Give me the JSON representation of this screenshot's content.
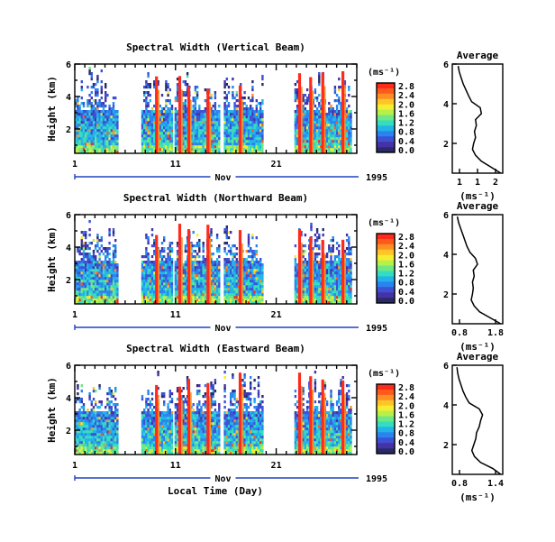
{
  "xaxis_label": "Local Time (Day)",
  "month_label": "Nov",
  "year_label": "1995",
  "colorbar": {
    "unit": "(ms⁻¹)",
    "ticks": [
      "2.8",
      "2.4",
      "2.0",
      "1.6",
      "1.2",
      "0.8",
      "0.4",
      "0.0"
    ],
    "colors": [
      "#ff2a1a",
      "#ff5a1c",
      "#ff8f22",
      "#ffc528",
      "#f5ee30",
      "#b8f04a",
      "#6ee884",
      "#34dcc0",
      "#22b4e8",
      "#2a84f0",
      "#3c52d4",
      "#4432a6",
      "#2a2a6a"
    ]
  },
  "chart_data": [
    {
      "type": "heatmap",
      "title": "Spectral Width (Vertical Beam)",
      "xlabel": "Local Time (Day)",
      "ylabel": "Height (km)",
      "xticks": [
        "1",
        "11",
        "21"
      ],
      "yticks": [
        "2",
        "4",
        "6"
      ],
      "xlim": [
        1,
        29
      ],
      "ylim": [
        0.5,
        6
      ],
      "value_range": [
        0.0,
        2.8
      ],
      "data_intervals_day": [
        [
          1,
          5.3
        ],
        [
          7.6,
          10.6
        ],
        [
          10.9,
          15.3
        ],
        [
          15.8,
          19.7
        ],
        [
          22.8,
          28.4
        ]
      ],
      "high_width_days": [
        9.1,
        11.4,
        12.3,
        14.2,
        17.4,
        23.3,
        24.4,
        25.6,
        27.6
      ],
      "average_profile": {
        "title": "Average",
        "xlabel": "(ms⁻¹)",
        "ylabel": "",
        "xticks": [
          "1",
          "1",
          "2"
        ],
        "yticks": [
          "2",
          "4",
          "6"
        ],
        "xlim": [
          0.7,
          2.0
        ],
        "ylim": [
          0.5,
          6
        ],
        "height_km": [
          0.5,
          0.8,
          1.1,
          1.4,
          1.7,
          2.0,
          2.3,
          2.6,
          2.9,
          3.2,
          3.5,
          3.8,
          4.1,
          4.4,
          4.7,
          5.0,
          5.3,
          5.6,
          5.9
        ],
        "width_ms": [
          1.95,
          1.7,
          1.45,
          1.3,
          1.22,
          1.25,
          1.3,
          1.27,
          1.32,
          1.3,
          1.45,
          1.42,
          1.2,
          1.12,
          1.05,
          0.98,
          0.93,
          0.88,
          0.85
        ]
      }
    },
    {
      "type": "heatmap",
      "title": "Spectral Width (Northward Beam)",
      "xlabel": "Local Time (Day)",
      "ylabel": "Height (km)",
      "xticks": [
        "1",
        "11",
        "21"
      ],
      "yticks": [
        "2",
        "4",
        "6"
      ],
      "xlim": [
        1,
        29
      ],
      "ylim": [
        0.5,
        6
      ],
      "value_range": [
        0.0,
        2.8
      ],
      "data_intervals_day": [
        [
          1,
          5.3
        ],
        [
          7.6,
          10.6
        ],
        [
          10.9,
          15.3
        ],
        [
          15.8,
          19.7
        ],
        [
          22.8,
          28.4
        ]
      ],
      "high_width_days": [
        9.1,
        11.4,
        12.3,
        14.2,
        17.4,
        23.3,
        24.4,
        25.6,
        27.6
      ],
      "average_profile": {
        "title": "Average",
        "xlabel": "(ms⁻¹)",
        "ylabel": "",
        "xticks": [
          "0.8",
          "1.8"
        ],
        "yticks": [
          "2",
          "4",
          "6"
        ],
        "xlim": [
          0.6,
          1.8
        ],
        "ylim": [
          0.5,
          6
        ],
        "height_km": [
          0.5,
          0.8,
          1.1,
          1.4,
          1.7,
          2.0,
          2.3,
          2.6,
          2.9,
          3.2,
          3.5,
          3.8,
          4.1,
          4.4,
          4.7,
          5.0,
          5.3,
          5.6,
          5.9
        ],
        "width_ms": [
          1.75,
          1.5,
          1.25,
          1.12,
          1.05,
          1.08,
          1.1,
          1.08,
          1.12,
          1.1,
          1.2,
          1.15,
          1.02,
          0.95,
          0.9,
          0.85,
          0.8,
          0.75,
          0.72
        ]
      }
    },
    {
      "type": "heatmap",
      "title": "Spectral Width (Eastward Beam)",
      "xlabel": "Local Time (Day)",
      "ylabel": "Height (km)",
      "xticks": [
        "1",
        "11",
        "21"
      ],
      "yticks": [
        "2",
        "4",
        "6"
      ],
      "xlim": [
        1,
        29
      ],
      "ylim": [
        0.5,
        6
      ],
      "value_range": [
        0.0,
        2.8
      ],
      "data_intervals_day": [
        [
          1,
          5.3
        ],
        [
          7.6,
          10.6
        ],
        [
          10.9,
          15.3
        ],
        [
          15.8,
          19.7
        ],
        [
          22.8,
          28.4
        ]
      ],
      "high_width_days": [
        9.1,
        11.4,
        12.3,
        14.2,
        17.4,
        23.3,
        24.4,
        25.6,
        27.6
      ],
      "average_profile": {
        "title": "Average",
        "xlabel": "(ms⁻¹)",
        "ylabel": "",
        "xticks": [
          "0.8",
          "1.4"
        ],
        "yticks": [
          "2",
          "4",
          "6"
        ],
        "xlim": [
          0.7,
          1.45
        ],
        "ylim": [
          0.5,
          6
        ],
        "height_km": [
          0.5,
          0.8,
          1.1,
          1.4,
          1.7,
          2.0,
          2.3,
          2.6,
          2.9,
          3.2,
          3.5,
          3.8,
          4.1,
          4.4,
          4.7,
          5.0,
          5.3,
          5.6,
          5.9
        ],
        "width_ms": [
          1.42,
          1.3,
          1.12,
          1.03,
          0.99,
          1.02,
          1.05,
          1.06,
          1.1,
          1.12,
          1.15,
          1.1,
          0.95,
          0.9,
          0.86,
          0.83,
          0.8,
          0.78,
          0.77
        ]
      }
    }
  ]
}
